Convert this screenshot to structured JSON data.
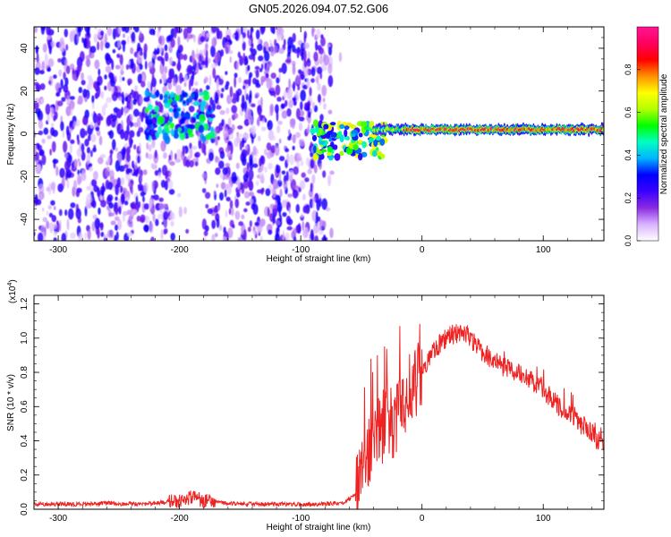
{
  "figure_title": "GN05.2026.094.07.52.G06",
  "chart_data": [
    {
      "type": "heatmap",
      "title": "",
      "xlabel": "Height of straight line (km)",
      "ylabel": "Frequency (Hz)",
      "xlim": [
        -320,
        150
      ],
      "ylim": [
        -50,
        50
      ],
      "xticks": [
        -300,
        -200,
        -100,
        0,
        100
      ],
      "yticks": [
        -40,
        -20,
        0,
        20,
        40
      ],
      "xticklabels": [
        "-300",
        "-200",
        "-100",
        "0",
        "100"
      ],
      "yticklabels": [
        "-40",
        "-20",
        "0",
        "20",
        "40"
      ],
      "colorbar": {
        "label": "Normalized spectral amplitude",
        "range": [
          0,
          1
        ],
        "ticks": [
          0.0,
          0.2,
          0.4,
          0.6,
          0.8
        ],
        "ticklabels": [
          "0.0",
          "0.2",
          "0.4",
          "0.6",
          "0.8"
        ],
        "colormap": [
          "#ffffff",
          "#d9b3ff",
          "#8a2be2",
          "#3a00ff",
          "#0000ff",
          "#00b4ff",
          "#00ffc0",
          "#00ff00",
          "#b4ff00",
          "#ffff00",
          "#ff9000",
          "#ff0000",
          "#ff0060",
          "#ff1493"
        ]
      },
      "regions": [
        {
          "name": "broadband noise",
          "x_range": [
            -320,
            -80
          ],
          "y_range": [
            -50,
            50
          ],
          "amplitude": 0.2
        },
        {
          "name": "noise gap",
          "x_range": [
            -205,
            -180
          ],
          "y_range": [
            -50,
            -15
          ],
          "amplitude": 0.02
        },
        {
          "name": "early cluster",
          "x_center": -200,
          "y_center": 8,
          "amplitude": 0.4
        },
        {
          "name": "onset burst",
          "x_center": -60,
          "y_center": -3,
          "amplitude": 0.55
        },
        {
          "name": "narrowband signal",
          "x_range": [
            -40,
            150
          ],
          "frequency_hz": 2,
          "amplitude": 0.95
        }
      ]
    },
    {
      "type": "line",
      "title": "",
      "xlabel": "Height of straight line (km)",
      "ylabel": "SNR (10 * v/v)",
      "y_multiplier": "(x10",
      "y_multiplier_exp": "4",
      "y_multiplier_close": ")",
      "xlim": [
        -320,
        150
      ],
      "ylim": [
        0,
        1.25
      ],
      "xticks": [
        -300,
        -200,
        -100,
        0,
        100
      ],
      "yticks": [
        0.0,
        0.2,
        0.4,
        0.6,
        0.8,
        1.0,
        1.2
      ],
      "xticklabels": [
        "-300",
        "-200",
        "-100",
        "0",
        "100"
      ],
      "yticklabels": [
        "0.0",
        "0.2",
        "0.4",
        "0.6",
        "0.8",
        "1.0",
        "1.2"
      ],
      "line_color": "#ee2222",
      "series": [
        {
          "name": "SNR",
          "x": [
            -320,
            -300,
            -280,
            -260,
            -240,
            -220,
            -200,
            -190,
            -180,
            -160,
            -140,
            -120,
            -100,
            -80,
            -65,
            -55,
            -50,
            -45,
            -40,
            -35,
            -30,
            -25,
            -20,
            -15,
            -10,
            -5,
            0,
            5,
            10,
            15,
            20,
            25,
            30,
            35,
            40,
            45,
            50,
            55,
            60,
            70,
            80,
            90,
            100,
            110,
            120,
            125,
            130,
            135,
            140,
            145,
            150
          ],
          "y": [
            0.03,
            0.03,
            0.03,
            0.035,
            0.03,
            0.035,
            0.05,
            0.07,
            0.05,
            0.035,
            0.03,
            0.03,
            0.03,
            0.03,
            0.04,
            0.08,
            0.22,
            0.33,
            0.4,
            0.45,
            0.52,
            0.5,
            0.55,
            0.62,
            0.7,
            0.75,
            0.82,
            0.87,
            0.92,
            0.97,
            1.0,
            1.02,
            1.03,
            1.02,
            1.0,
            0.95,
            0.92,
            0.89,
            0.86,
            0.82,
            0.8,
            0.75,
            0.7,
            0.62,
            0.57,
            0.55,
            0.5,
            0.48,
            0.45,
            0.4,
            0.38
          ]
        }
      ]
    }
  ]
}
